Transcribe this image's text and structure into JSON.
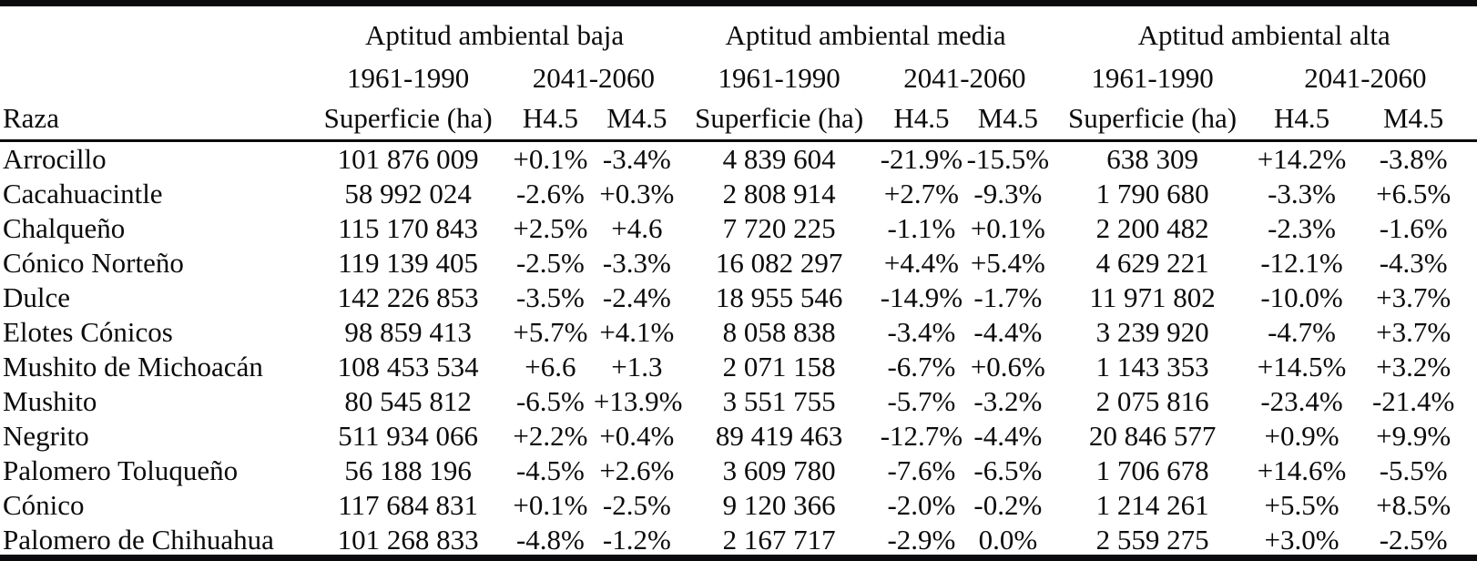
{
  "table": {
    "row_header_label": "Raza",
    "groups": [
      {
        "label": "Aptitud ambiental baja"
      },
      {
        "label": "Aptitud ambiental media"
      },
      {
        "label": "Aptitud ambiental alta"
      }
    ],
    "period_labels": {
      "past": "1961-1990",
      "future": "2041-2060"
    },
    "column_labels": {
      "superficie": "Superficie (ha)",
      "h": "H4.5",
      "m": "M4.5"
    },
    "rows": [
      {
        "raza": "Arrocillo",
        "baja": [
          "101 876 009",
          "+0.1%",
          "-3.4%"
        ],
        "media": [
          "4 839 604",
          "-21.9%",
          "-15.5%"
        ],
        "alta": [
          "638 309",
          "+14.2%",
          "-3.8%"
        ]
      },
      {
        "raza": "Cacahuacintle",
        "baja": [
          "58 992 024",
          "-2.6%",
          "+0.3%"
        ],
        "media": [
          "2 808 914",
          "+2.7%",
          "-9.3%"
        ],
        "alta": [
          "1 790 680",
          "-3.3%",
          "+6.5%"
        ]
      },
      {
        "raza": "Chalqueño",
        "baja": [
          "115 170 843",
          "+2.5%",
          "+4.6"
        ],
        "media": [
          "7 720 225",
          "-1.1%",
          "+0.1%"
        ],
        "alta": [
          "2 200 482",
          "-2.3%",
          "-1.6%"
        ]
      },
      {
        "raza": "Cónico Norteño",
        "baja": [
          "119 139 405",
          "-2.5%",
          "-3.3%"
        ],
        "media": [
          "16 082 297",
          "+4.4%",
          "+5.4%"
        ],
        "alta": [
          "4 629 221",
          "-12.1%",
          "-4.3%"
        ]
      },
      {
        "raza": "Dulce",
        "baja": [
          "142 226 853",
          "-3.5%",
          "-2.4%"
        ],
        "media": [
          "18 955 546",
          "-14.9%",
          "-1.7%"
        ],
        "alta": [
          "11 971 802",
          "-10.0%",
          "+3.7%"
        ]
      },
      {
        "raza": "Elotes Cónicos",
        "baja": [
          "98 859 413",
          "+5.7%",
          "+4.1%"
        ],
        "media": [
          "8 058 838",
          "-3.4%",
          "-4.4%"
        ],
        "alta": [
          "3 239 920",
          "-4.7%",
          "+3.7%"
        ]
      },
      {
        "raza": "Mushito de Michoacán",
        "baja": [
          "108 453 534",
          "+6.6",
          "+1.3"
        ],
        "media": [
          "2 071 158",
          "-6.7%",
          "+0.6%"
        ],
        "alta": [
          "1 143 353",
          "+14.5%",
          "+3.2%"
        ]
      },
      {
        "raza": "Mushito",
        "baja": [
          "80 545 812",
          "-6.5%",
          "+13.9%"
        ],
        "media": [
          "3 551 755",
          "-5.7%",
          "-3.2%"
        ],
        "alta": [
          "2 075 816",
          "-23.4%",
          "-21.4%"
        ]
      },
      {
        "raza": "Negrito",
        "baja": [
          "511 934 066",
          "+2.2%",
          "+0.4%"
        ],
        "media": [
          "89 419 463",
          "-12.7%",
          "-4.4%"
        ],
        "alta": [
          "20 846 577",
          "+0.9%",
          "+9.9%"
        ]
      },
      {
        "raza": "Palomero Toluqueño",
        "baja": [
          "56 188 196",
          "-4.5%",
          "+2.6%"
        ],
        "media": [
          "3 609 780",
          "-7.6%",
          "-6.5%"
        ],
        "alta": [
          "1 706 678",
          "+14.6%",
          "-5.5%"
        ]
      },
      {
        "raza": "Cónico",
        "baja": [
          "117 684 831",
          "+0.1%",
          "-2.5%"
        ],
        "media": [
          "9 120 366",
          "-2.0%",
          "-0.2%"
        ],
        "alta": [
          "1 214 261",
          "+5.5%",
          "+8.5%"
        ]
      },
      {
        "raza": "Palomero de Chihuahua",
        "baja": [
          "101 268 833",
          "-4.8%",
          "-1.2%"
        ],
        "media": [
          "2 167 717",
          "-2.9%",
          "0.0%"
        ],
        "alta": [
          "2 559 275",
          "+3.0%",
          "-2.5%"
        ]
      }
    ]
  }
}
